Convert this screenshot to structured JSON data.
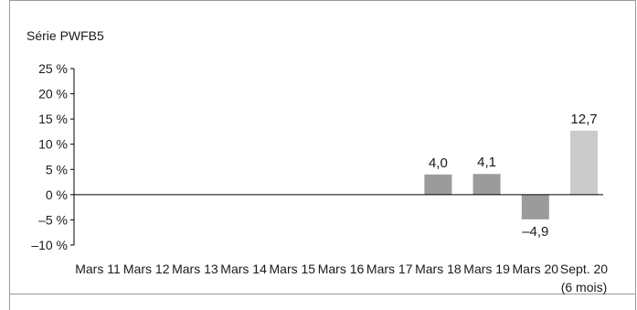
{
  "chart_data": {
    "type": "bar",
    "title": "Série PWFB5",
    "categories": [
      "Mars 11",
      "Mars 12",
      "Mars 13",
      "Mars 14",
      "Mars 15",
      "Mars 16",
      "Mars 17",
      "Mars 18",
      "Mars 19",
      "Mars 20",
      "Sept. 20"
    ],
    "category_sublabels": [
      "",
      "",
      "",
      "",
      "",
      "",
      "",
      "",
      "",
      "",
      "(6 mois)"
    ],
    "values": [
      null,
      null,
      null,
      null,
      null,
      null,
      null,
      4.0,
      4.1,
      -4.9,
      12.7
    ],
    "value_labels": [
      "",
      "",
      "",
      "",
      "",
      "",
      "",
      "4,0",
      "4,1",
      "–4,9",
      "12,7"
    ],
    "ylim": [
      -10,
      25
    ],
    "yticks": [
      25,
      20,
      15,
      10,
      5,
      0,
      -5,
      -10
    ],
    "ytick_labels": [
      "25 %",
      "20 %",
      "15 %",
      "10 %",
      "5 %",
      "0 %",
      "–5 %",
      "–10 %"
    ],
    "colors": {
      "default_bar": "#9b9b9b",
      "last_bar": "#cbcbcb",
      "axis": "#000000"
    },
    "grid": false,
    "legend": "none"
  }
}
